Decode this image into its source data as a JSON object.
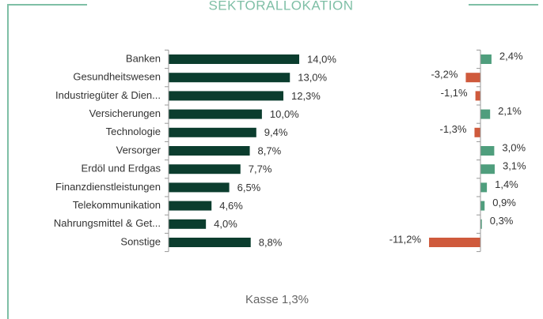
{
  "title": "SEKTORALLOKATION",
  "note": "Kasse 1,3%",
  "chart_data": [
    {
      "type": "hbar",
      "categories": [
        "Banken",
        "Gesundheitswesen",
        "Industriegüter & Dien...",
        "Versicherungen",
        "Technologie",
        "Versorger",
        "Erdöl und Erdgas",
        "Finanzdienstleistungen",
        "Telekommunikation",
        "Nahrungsmittel & Get...",
        "Sonstige"
      ],
      "values": [
        14.0,
        13.0,
        12.3,
        10.0,
        9.4,
        8.7,
        7.7,
        6.5,
        4.6,
        4.0,
        8.8
      ],
      "value_labels": [
        "14,0%",
        "13,0%",
        "12,3%",
        "10,0%",
        "9,4%",
        "8,7%",
        "7,7%",
        "6,5%",
        "4,6%",
        "4,0%",
        "8,8%"
      ],
      "color": "#0b3d2e",
      "xlim": [
        0,
        16
      ]
    },
    {
      "type": "hbar-diverging",
      "values": [
        2.4,
        -3.2,
        -1.1,
        2.1,
        -1.3,
        3.0,
        3.1,
        1.4,
        0.9,
        0.3,
        -11.2
      ],
      "value_labels": [
        "2,4%",
        "-3,2%",
        "-1,1%",
        "2,1%",
        "-1,3%",
        "3,0%",
        "3,1%",
        "1,4%",
        "0,9%",
        "0,3%",
        "-11,2%"
      ],
      "positive_color": "#4f9e7d",
      "negative_color": "#cf5a3c",
      "xlim": [
        -12,
        4
      ]
    }
  ]
}
